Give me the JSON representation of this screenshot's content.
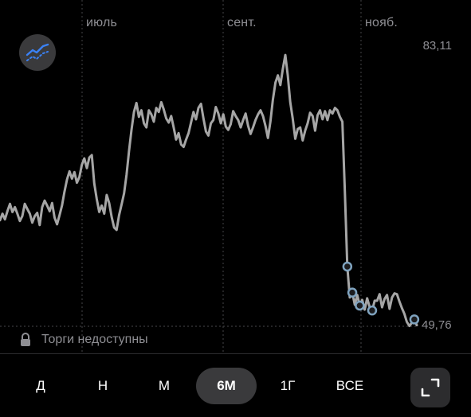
{
  "chart": {
    "months": [
      "июль",
      "сент.",
      "нояб."
    ],
    "max_value": "83,11",
    "min_value": "49,76",
    "colors": {
      "line": "#a6a6a6",
      "marker": "#4a6a80",
      "gridline": "#3a3a3c",
      "indicator_icon": "#3b82f6"
    }
  },
  "chart_data": {
    "type": "line",
    "series": [
      {
        "values": [
          62.8,
          63.6,
          62.9,
          63.9,
          64.8,
          63.8,
          64.4,
          63.6,
          62.7,
          63.3,
          64.8,
          64.2,
          63.6,
          62.5,
          63.3,
          63.7,
          62.2,
          64.4,
          65.2,
          64.6,
          63.9,
          64.9,
          63.1,
          62.3,
          63.4,
          64.6,
          66.3,
          67.8,
          68.8,
          67.9,
          68.7,
          67.4,
          68.1,
          69.6,
          70.4,
          69.2,
          70.5,
          70.8,
          67.3,
          65.4,
          63.8,
          64.6,
          63.6,
          65.9,
          64.9,
          63.2,
          61.9,
          61.6,
          63.4,
          64.7,
          66.1,
          68.4,
          71.3,
          73.9,
          76.1,
          77.2,
          75.5,
          76.3,
          74.7,
          74.2,
          76.3,
          75.8,
          74.9,
          76.6,
          76.1,
          77.3,
          76.4,
          75.3,
          74.8,
          75.6,
          74.2,
          72.7,
          73.5,
          72.1,
          71.8,
          72.7,
          73.5,
          74.8,
          76.1,
          75.2,
          76.6,
          77.1,
          75.3,
          73.7,
          73.2,
          74.7,
          75.1,
          76.7,
          75.9,
          74.7,
          75.8,
          74.3,
          73.9,
          74.6,
          76.2,
          75.6,
          75.1,
          74.2,
          75.1,
          75.9,
          74.4,
          73.4,
          74.2,
          75.1,
          75.8,
          76.3,
          75.6,
          74.4,
          72.9,
          74.9,
          77.6,
          79.7,
          80.6,
          79.4,
          81.4,
          83.1,
          80.6,
          77.3,
          75.3,
          72.8,
          74.0,
          74.2,
          72.6,
          73.8,
          74.7,
          76.0,
          75.6,
          73.8,
          75.7,
          76.3,
          75.2,
          76.2,
          75.1,
          76.3,
          75.9,
          76.6,
          76.3,
          75.5,
          74.9,
          66.4,
          57.1,
          53.3,
          53.9,
          52.4,
          53.6,
          52.3,
          53.0,
          51.8,
          53.2,
          52.1,
          51.7,
          52.9,
          52.9,
          53.7,
          52.1,
          53.1,
          53.6,
          51.9,
          53.3,
          53.8,
          53.7,
          52.8,
          52.0,
          51.3,
          50.3,
          49.8,
          50.2,
          50.6,
          49.9
        ]
      }
    ],
    "x_labels": [
      "июль",
      "сент.",
      "нояб."
    ],
    "ylim": [
      49.76,
      83.11
    ],
    "grid": true
  },
  "trading": {
    "status": "Торги недоступны"
  },
  "periods": [
    {
      "label": "Д",
      "active": false
    },
    {
      "label": "Н",
      "active": false
    },
    {
      "label": "М",
      "active": false
    },
    {
      "label": "6М",
      "active": true
    },
    {
      "label": "1Г",
      "active": false
    },
    {
      "label": "ВСЕ",
      "active": false
    }
  ],
  "icons": {
    "indicator": "chart-indicator-icon",
    "lock": "lock-icon",
    "expand": "expand-icon"
  }
}
